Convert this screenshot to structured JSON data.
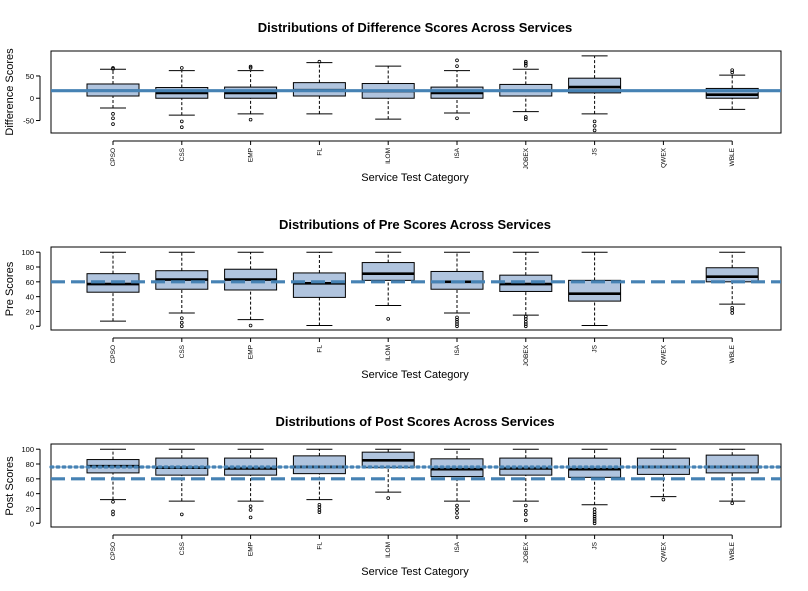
{
  "colors": {
    "box_fill": "#b0c4de",
    "ref_line": "#4682b4",
    "outline": "#000000",
    "background": "#ffffff"
  },
  "chart_data": [
    {
      "type": "boxplot",
      "title": "Distributions of Difference Scores Across Services",
      "xlabel": "Service Test Category",
      "ylabel": "Difference Scores",
      "ylim": [
        -78,
        106
      ],
      "yticks": [
        -50,
        0,
        50
      ],
      "categories": [
        "CPSO",
        "CSS",
        "EMP",
        "FL",
        "ILOM",
        "ISA",
        "JOBEX",
        "JS",
        "QWEX",
        "WBLE"
      ],
      "boxes": [
        {
          "whisker_low": -22,
          "q1": 5,
          "median": 17,
          "q3": 32,
          "whisker_high": 65,
          "outliers": [
            -35,
            -45,
            -58,
            66,
            68
          ]
        },
        {
          "whisker_low": -38,
          "q1": 0,
          "median": 12,
          "q3": 24,
          "whisker_high": 62,
          "outliers": [
            -52,
            -65,
            68
          ]
        },
        {
          "whisker_low": -35,
          "q1": 0,
          "median": 12,
          "q3": 25,
          "whisker_high": 62,
          "outliers": [
            -48,
            68,
            71
          ]
        },
        {
          "whisker_low": -35,
          "q1": 5,
          "median": 18,
          "q3": 35,
          "whisker_high": 80,
          "outliers": [
            82
          ]
        },
        {
          "whisker_low": -47,
          "q1": 0,
          "median": 16,
          "q3": 33,
          "whisker_high": 72,
          "outliers": []
        },
        {
          "whisker_low": -33,
          "q1": 0,
          "median": 12,
          "q3": 25,
          "whisker_high": 62,
          "outliers": [
            -45,
            72,
            85
          ]
        },
        {
          "whisker_low": -30,
          "q1": 5,
          "median": 17,
          "q3": 31,
          "whisker_high": 65,
          "outliers": [
            -42,
            -47,
            73,
            78,
            82
          ]
        },
        {
          "whisker_low": -35,
          "q1": 12,
          "median": 25,
          "q3": 45,
          "whisker_high": 95,
          "outliers": [
            -52,
            -62,
            -72
          ]
        },
        null,
        {
          "whisker_low": -25,
          "q1": 0,
          "median": 8,
          "q3": 22,
          "whisker_high": 52,
          "outliers": [
            58,
            63
          ]
        }
      ],
      "reference_lines": [
        {
          "value": 17,
          "style": "solid"
        }
      ]
    },
    {
      "type": "boxplot",
      "title": "Distributions of Pre Scores Across Services",
      "xlabel": "Service Test Category",
      "ylabel": "Pre Scores",
      "ylim": [
        -5,
        107
      ],
      "yticks": [
        0,
        20,
        40,
        60,
        80,
        100
      ],
      "categories": [
        "CPSO",
        "CSS",
        "EMP",
        "FL",
        "ILOM",
        "ISA",
        "JOBEX",
        "JS",
        "QWEX",
        "WBLE"
      ],
      "boxes": [
        {
          "whisker_low": 7,
          "q1": 46,
          "median": 57,
          "q3": 71,
          "whisker_high": 100,
          "outliers": []
        },
        {
          "whisker_low": 18,
          "q1": 50,
          "median": 63,
          "q3": 75,
          "whisker_high": 100,
          "outliers": [
            0,
            5,
            11
          ]
        },
        {
          "whisker_low": 9,
          "q1": 49,
          "median": 63,
          "q3": 77,
          "whisker_high": 100,
          "outliers": [
            1
          ]
        },
        {
          "whisker_low": 1,
          "q1": 39,
          "median": 58,
          "q3": 72,
          "whisker_high": 100,
          "outliers": []
        },
        {
          "whisker_low": 28,
          "q1": 62,
          "median": 71,
          "q3": 86,
          "whisker_high": 100,
          "outliers": [
            10
          ]
        },
        {
          "whisker_low": 18,
          "q1": 50,
          "median": 60,
          "q3": 74,
          "whisker_high": 100,
          "outliers": [
            0,
            3,
            6,
            9,
            12
          ]
        },
        {
          "whisker_low": 15,
          "q1": 47,
          "median": 57,
          "q3": 69,
          "whisker_high": 100,
          "outliers": [
            0,
            3,
            6,
            10,
            13
          ]
        },
        {
          "whisker_low": 1,
          "q1": 34,
          "median": 44,
          "q3": 62,
          "whisker_high": 100,
          "outliers": []
        },
        null,
        {
          "whisker_low": 30,
          "q1": 60,
          "median": 67,
          "q3": 79,
          "whisker_high": 100,
          "outliers": [
            18,
            22,
            25
          ]
        }
      ],
      "reference_lines": [
        {
          "value": 60,
          "style": "dashed"
        }
      ]
    },
    {
      "type": "boxplot",
      "title": "Distributions of Post Scores Across Services",
      "xlabel": "Service Test Category",
      "ylabel": "Post Scores",
      "ylim": [
        -5,
        107
      ],
      "yticks": [
        0,
        20,
        40,
        60,
        80,
        100
      ],
      "categories": [
        "CPSO",
        "CSS",
        "EMP",
        "FL",
        "ILOM",
        "ISA",
        "JOBEX",
        "JS",
        "QWEX",
        "WBLE"
      ],
      "boxes": [
        {
          "whisker_low": 32,
          "q1": 68,
          "median": 77,
          "q3": 86,
          "whisker_high": 100,
          "outliers": [
            12,
            16,
            29
          ]
        },
        {
          "whisker_low": 30,
          "q1": 65,
          "median": 75,
          "q3": 88,
          "whisker_high": 100,
          "outliers": [
            12
          ]
        },
        {
          "whisker_low": 30,
          "q1": 65,
          "median": 74,
          "q3": 88,
          "whisker_high": 100,
          "outliers": [
            8,
            18,
            23
          ]
        },
        {
          "whisker_low": 32,
          "q1": 67,
          "median": 76,
          "q3": 91,
          "whisker_high": 100,
          "outliers": [
            15,
            18,
            22,
            25
          ]
        },
        {
          "whisker_low": 42,
          "q1": 75,
          "median": 85,
          "q3": 96,
          "whisker_high": 100,
          "outliers": [
            34
          ]
        },
        {
          "whisker_low": 30,
          "q1": 63,
          "median": 73,
          "q3": 87,
          "whisker_high": 100,
          "outliers": [
            8,
            14,
            19,
            24
          ]
        },
        {
          "whisker_low": 30,
          "q1": 65,
          "median": 74,
          "q3": 88,
          "whisker_high": 100,
          "outliers": [
            4,
            12,
            17,
            24
          ]
        },
        {
          "whisker_low": 25,
          "q1": 62,
          "median": 73,
          "q3": 88,
          "whisker_high": 100,
          "outliers": [
            0,
            3,
            6,
            9,
            12,
            15,
            19
          ]
        },
        {
          "whisker_low": 36,
          "q1": 66,
          "median": 76,
          "q3": 88,
          "whisker_high": 100,
          "outliers": [
            32
          ]
        },
        {
          "whisker_low": 30,
          "q1": 68,
          "median": 76,
          "q3": 92,
          "whisker_high": 100,
          "outliers": [
            27
          ]
        }
      ],
      "reference_lines": [
        {
          "value": 60,
          "style": "dashed"
        },
        {
          "value": 76,
          "style": "dotted"
        }
      ]
    }
  ]
}
